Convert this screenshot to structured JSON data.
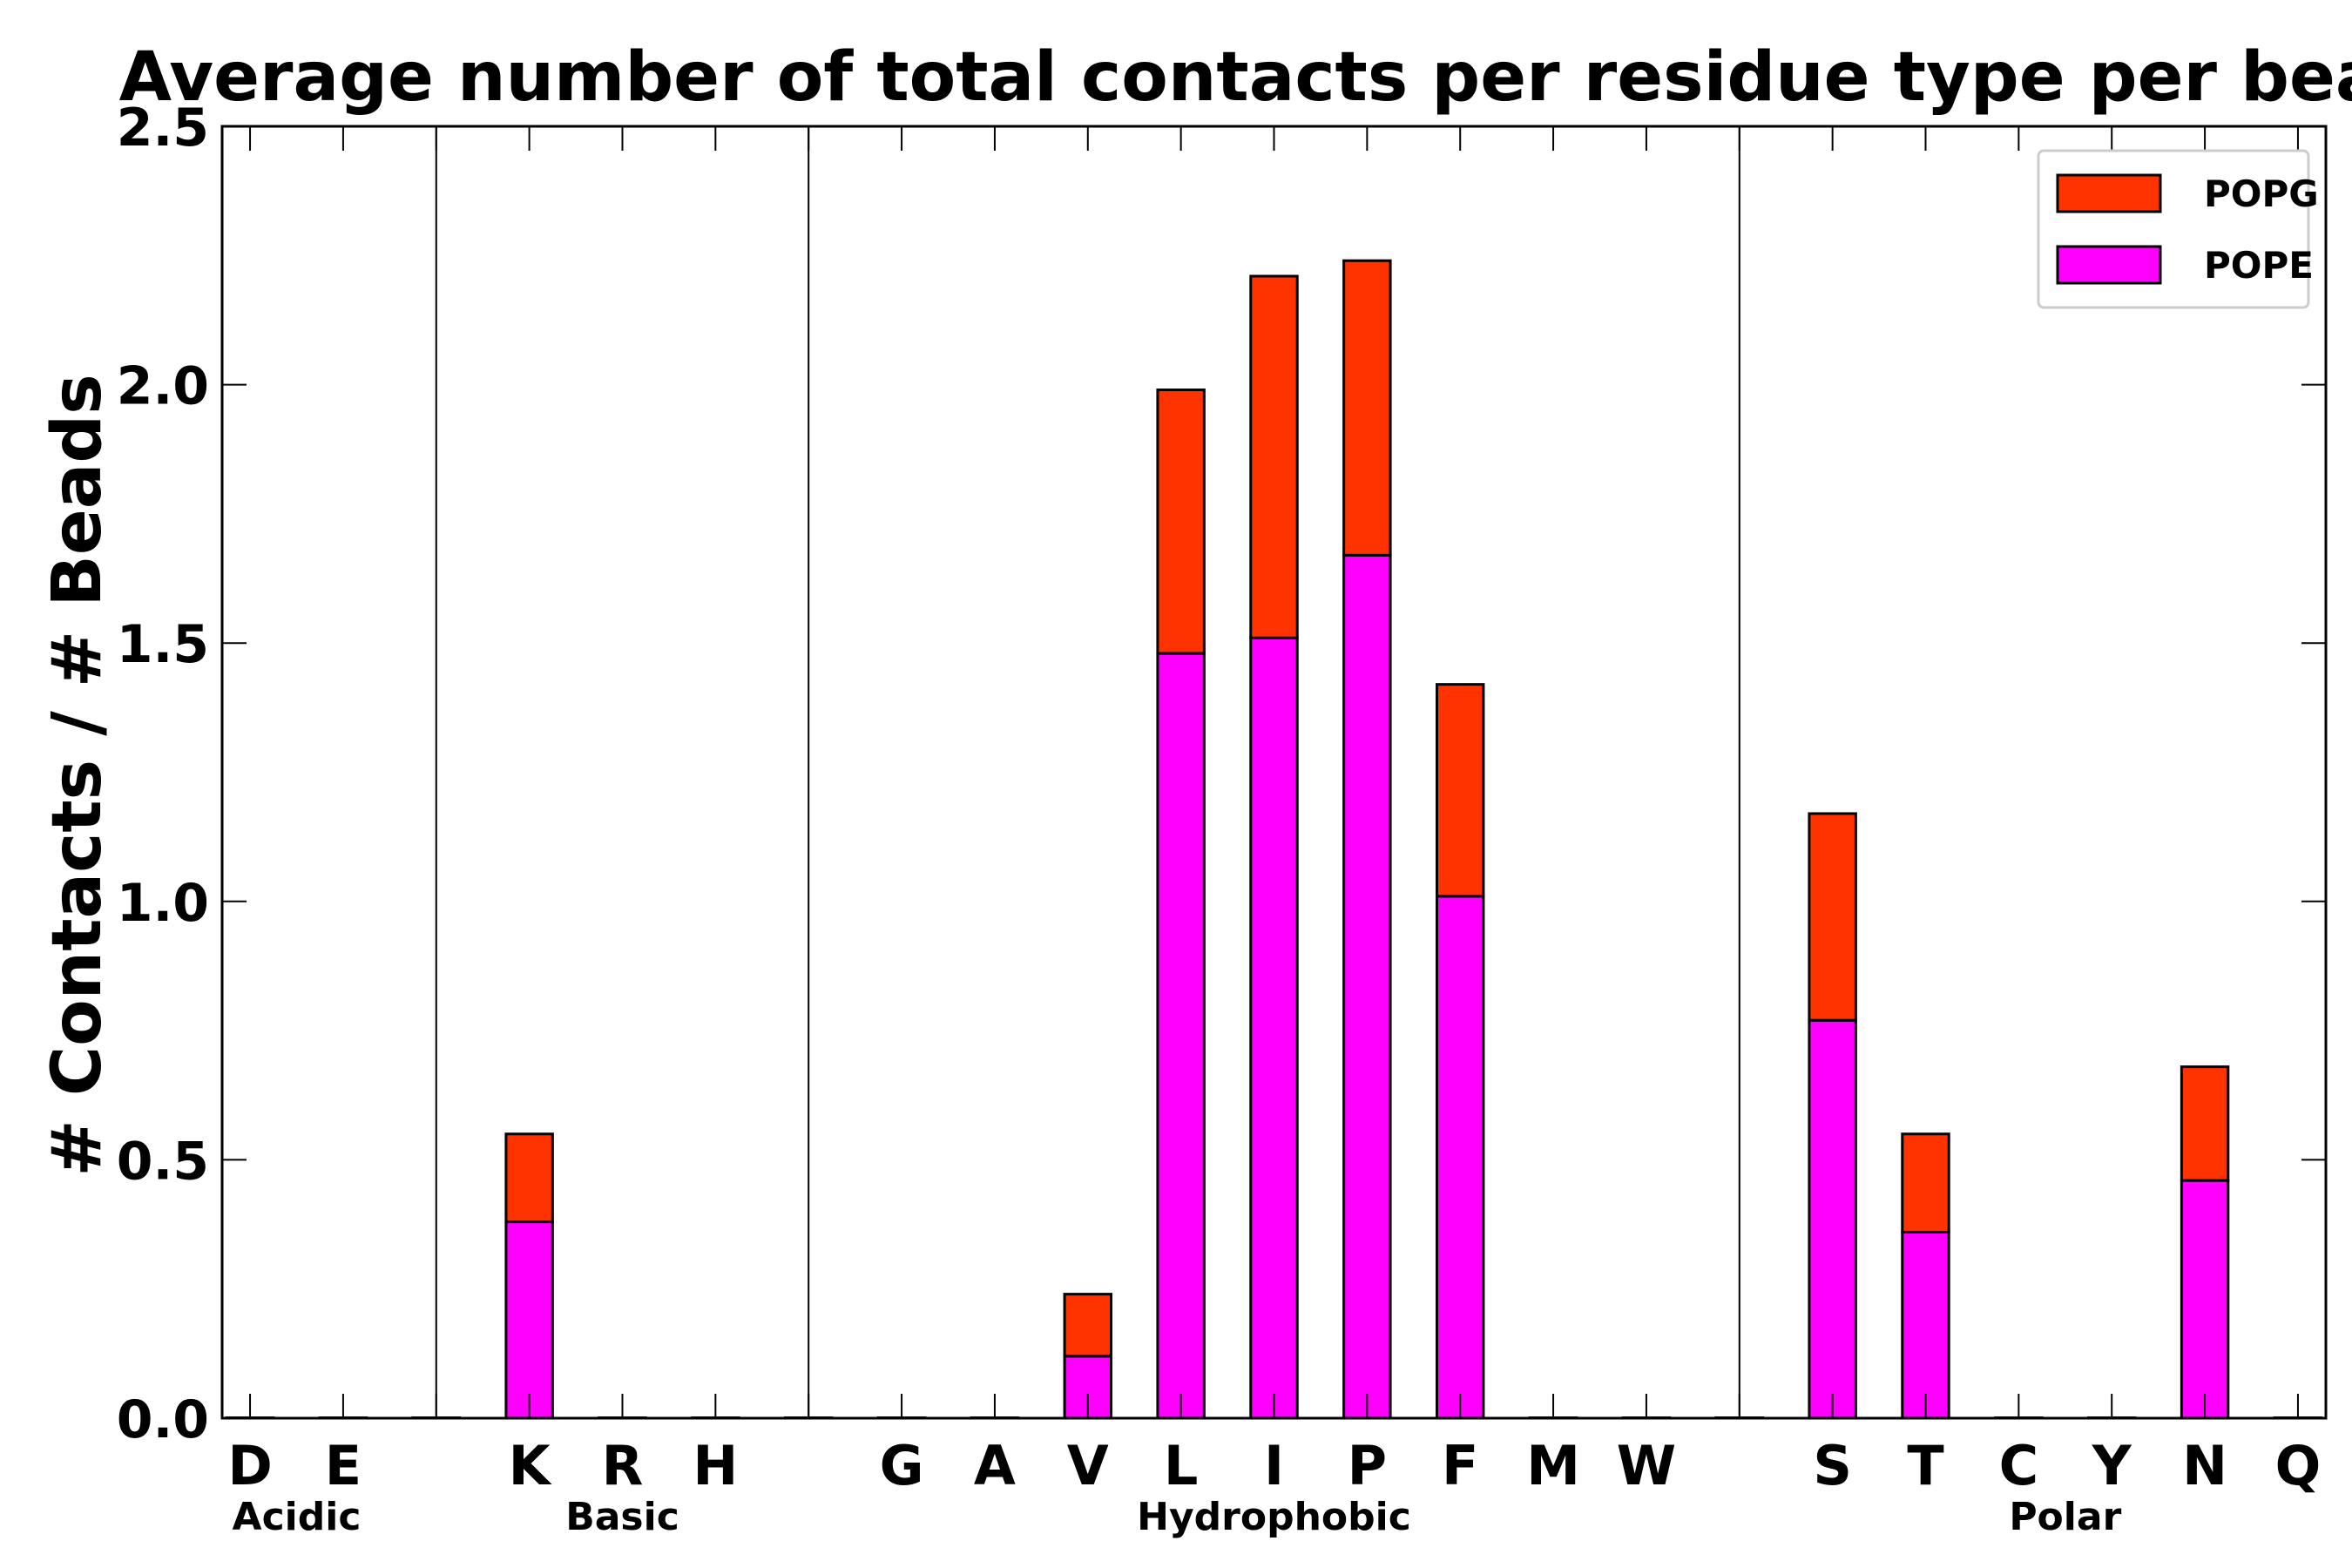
{
  "chart_data": {
    "type": "bar",
    "stacked": true,
    "title": "Average number of total contacts per residue type per bead",
    "xlabel": "",
    "ylabel": "# Contacts / # Beads",
    "ylim": [
      0,
      2.5
    ],
    "yticks": [
      "0.0",
      "0.5",
      "1.0",
      "1.5",
      "2.0",
      "2.5"
    ],
    "categories": [
      "D",
      "E",
      "",
      "K",
      "R",
      "H",
      "",
      "G",
      "A",
      "V",
      "L",
      "I",
      "P",
      "F",
      "M",
      "W",
      "",
      "S",
      "T",
      "C",
      "Y",
      "N",
      "Q"
    ],
    "series": [
      {
        "name": "POPE",
        "color": "#ff00ff",
        "values": [
          0,
          0,
          0,
          0.38,
          0,
          0,
          0,
          0,
          0,
          0.12,
          1.48,
          1.51,
          1.67,
          1.01,
          0,
          0,
          0,
          0.77,
          0.36,
          0,
          0,
          0.46,
          0
        ]
      },
      {
        "name": "POPG",
        "color": "#ff3300",
        "values": [
          0,
          0,
          0,
          0.17,
          0,
          0,
          0,
          0,
          0,
          0.12,
          0.51,
          0.7,
          0.57,
          0.41,
          0,
          0,
          0,
          0.4,
          0.19,
          0,
          0,
          0.22,
          0
        ]
      }
    ],
    "groups": [
      {
        "label": "Acidic",
        "start": 0,
        "end": 1
      },
      {
        "label": "Basic",
        "start": 3,
        "end": 5
      },
      {
        "label": "Hydrophobic",
        "start": 7,
        "end": 15
      },
      {
        "label": "Polar",
        "start": 17,
        "end": 22
      }
    ],
    "legend": {
      "position": "top-right",
      "entries": [
        {
          "label": "POPG",
          "color": "#ff3300"
        },
        {
          "label": "POPE",
          "color": "#ff00ff"
        }
      ]
    }
  }
}
